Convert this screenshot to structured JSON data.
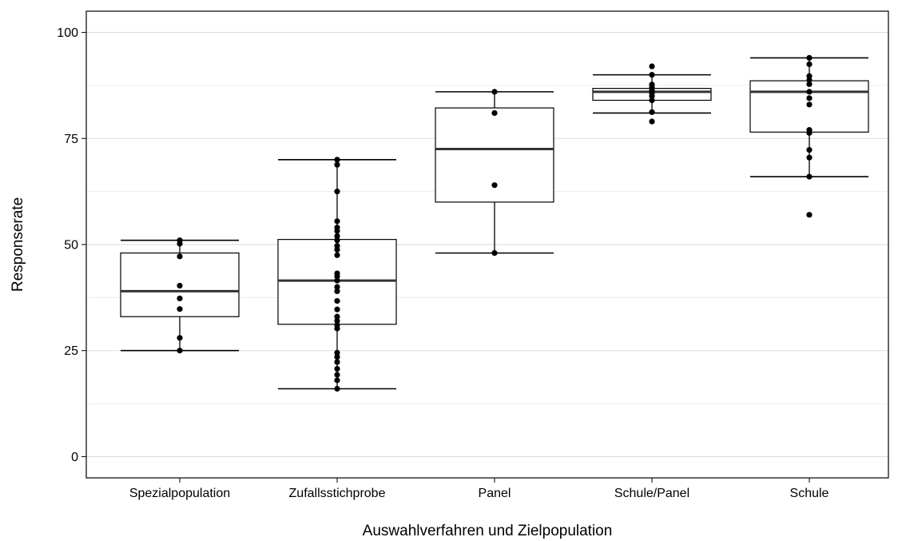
{
  "chart_data": {
    "type": "box",
    "xlabel": "Auswahlverfahren und Zielpopulation",
    "ylabel": "Responserate",
    "ylim": [
      -5,
      105
    ],
    "yticks": [
      0,
      25,
      50,
      75,
      100
    ],
    "grid": true,
    "categories": [
      "Spezialpopulation",
      "Zufallsstichprobe",
      "Panel",
      "Schule/Panel",
      "Schule"
    ],
    "boxes": [
      {
        "category": "Spezialpopulation",
        "whisker_low": 25,
        "q1": 33,
        "median": 39,
        "q3": 48,
        "whisker_high": 51,
        "points": [
          25,
          28,
          34.8,
          37.3,
          40.3,
          47.2,
          50.2,
          51
        ]
      },
      {
        "category": "Zufallsstichprobe",
        "whisker_low": 16,
        "q1": 31.2,
        "median": 41.5,
        "q3": 51.2,
        "whisker_high": 70,
        "points": [
          16,
          18,
          19.3,
          20.7,
          22.3,
          23.5,
          24.5,
          30.2,
          31,
          32,
          33,
          34.7,
          36.7,
          39,
          40,
          41.5,
          42.5,
          43.2,
          47.5,
          48.8,
          49.7,
          51,
          52,
          53.2,
          54,
          55.5,
          62.5,
          68.8,
          70
        ]
      },
      {
        "category": "Panel",
        "whisker_low": 48,
        "q1": 60,
        "median": 72.5,
        "q3": 82.2,
        "whisker_high": 86,
        "points": [
          48,
          64,
          81,
          86
        ]
      },
      {
        "category": "Schule/Panel",
        "whisker_low": 81,
        "q1": 84,
        "median": 86,
        "q3": 86.8,
        "whisker_high": 90,
        "points": [
          79,
          81.2,
          84,
          85,
          85.7,
          86.3,
          87,
          87.7,
          90,
          92
        ]
      },
      {
        "category": "Schule",
        "whisker_low": 66,
        "q1": 76.5,
        "median": 86,
        "q3": 88.6,
        "whisker_high": 94,
        "points": [
          57,
          66,
          70.5,
          72.3,
          76.3,
          77,
          83,
          84.5,
          86,
          87.8,
          88.8,
          89.7,
          92.5,
          94
        ]
      }
    ]
  }
}
